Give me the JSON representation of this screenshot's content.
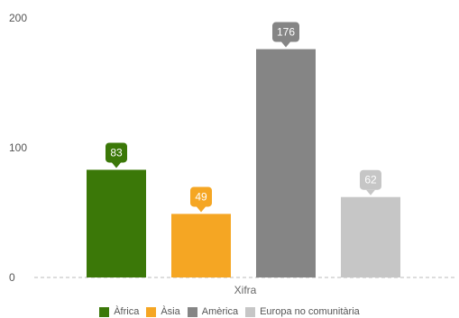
{
  "chart_data": {
    "type": "bar",
    "xlabel": "Xifra",
    "ylabel": "",
    "ylim": [
      0,
      200
    ],
    "yticks": [
      0,
      100,
      200
    ],
    "grid": false,
    "legend_position": "bottom",
    "categories": [
      "Xifra"
    ],
    "series": [
      {
        "name": "Àfrica",
        "values": [
          83
        ],
        "color": "#3b7808"
      },
      {
        "name": "Àsia",
        "values": [
          49
        ],
        "color": "#f5a623"
      },
      {
        "name": "Amèrica",
        "values": [
          176
        ],
        "color": "#858585"
      },
      {
        "name": "Europa no comunitària",
        "values": [
          62
        ],
        "color": "#c6c6c6"
      }
    ]
  }
}
